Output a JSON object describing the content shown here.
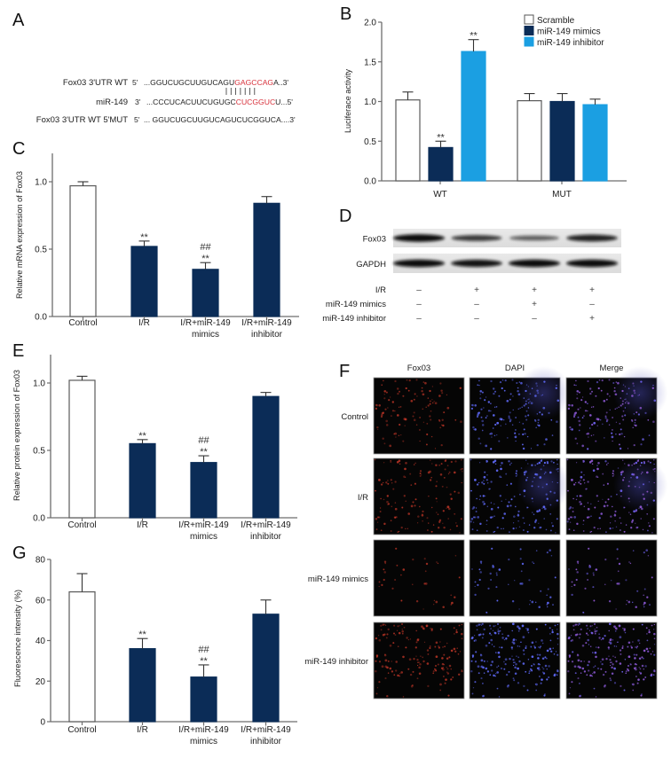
{
  "panel_labels": {
    "a": "A",
    "b": "B",
    "c": "C",
    "d": "D",
    "e": "E",
    "f": "F",
    "g": "G"
  },
  "panel_a": {
    "label": "A",
    "rows": [
      {
        "name": "Fox03 3'UTR WT",
        "end": "5'",
        "pre": "...GGUCUGCUUGUCAGU",
        "seed": "GAGCCAG",
        "post": "A..3'"
      },
      {
        "name": "miR-149",
        "end": "3'",
        "pre": "...CCCUCACUUCUGUGC",
        "seed": "CUCGGUC",
        "post": "U...5'"
      },
      {
        "name": "Fox03 3'UTR WT 5'MUT",
        "end": "5'",
        "pre": "... GGUCUGCUUGUCAGUCUCGGUCA....3'",
        "seed": "",
        "post": ""
      }
    ],
    "pair_count": 7,
    "seed_color": "#d8323c"
  },
  "panel_d": {
    "label": "D",
    "blots": [
      {
        "name": "Fox03",
        "intensity": [
          1.0,
          0.68,
          0.42,
          0.85
        ]
      },
      {
        "name": "GAPDH",
        "intensity": [
          1.0,
          0.95,
          1.0,
          1.0
        ]
      }
    ],
    "conditions": [
      {
        "name": "I/R",
        "signs": [
          "–",
          "+",
          "+",
          "+"
        ]
      },
      {
        "name": "miR-149 mimics",
        "signs": [
          "–",
          "–",
          "+",
          "–"
        ]
      },
      {
        "name": "miR-149 inhibitor",
        "signs": [
          "–",
          "–",
          "–",
          "+"
        ]
      }
    ]
  },
  "panel_f": {
    "label": "F",
    "columns": [
      "Fox03",
      "DAPI",
      "Merge"
    ],
    "rows": [
      "Control",
      "I/R",
      "miR-149 mimics",
      "miR-149 inhibitor"
    ]
  },
  "colors": {
    "scramble_control": "#ffffff",
    "mimics_treatment": "#0b2c57",
    "inhibitor": "#1b9fe2",
    "axis": "#6d6d6d",
    "seed_sequence": "#d8323c"
  },
  "chart_data": [
    {
      "panel": "B",
      "type": "bar",
      "title": "",
      "xlabel": "",
      "ylabel": "Luciferace activity",
      "ylim": [
        0,
        2.0
      ],
      "yticks": [
        0,
        0.5,
        1.0,
        1.5,
        2.0
      ],
      "ytick_labels": [
        "0.0",
        "0.5",
        "1.0",
        "1.5",
        "2.0"
      ],
      "categories": [
        "WT",
        "MUT"
      ],
      "series": [
        {
          "name": "Scramble",
          "color": "#ffffff",
          "values": [
            1.02,
            1.01
          ],
          "errors": [
            0.1,
            0.09
          ],
          "annotations": [
            [],
            []
          ]
        },
        {
          "name": "miR-149 mimics",
          "color": "#0b2c57",
          "values": [
            0.42,
            1.0
          ],
          "errors": [
            0.08,
            0.1
          ],
          "annotations": [
            [
              "**"
            ],
            []
          ]
        },
        {
          "name": "miR-149 inhibitor",
          "color": "#1b9fe2",
          "values": [
            1.63,
            0.96
          ],
          "errors": [
            0.15,
            0.07
          ],
          "annotations": [
            [
              "**"
            ],
            []
          ]
        }
      ],
      "legend_position": "top-right",
      "grid": false
    },
    {
      "panel": "C",
      "type": "bar",
      "title": "",
      "xlabel": "",
      "ylabel": "Relative mRNA expression of Fox03",
      "ylim": [
        0,
        1.2
      ],
      "yticks": [
        0,
        0.5,
        1.0
      ],
      "ytick_labels": [
        "0.0",
        "0.5",
        "1.0"
      ],
      "categories": [
        "Control",
        "I/R",
        "I/R+miR-149 mimics",
        "I/R+miR-149 inhibitor"
      ],
      "category_lines": [
        [
          "Control"
        ],
        [
          "I/R"
        ],
        [
          "I/R+miR-149",
          "mimics"
        ],
        [
          "I/R+miR-149",
          "inhibitor"
        ]
      ],
      "values": [
        0.97,
        0.52,
        0.35,
        0.84
      ],
      "errors": [
        0.03,
        0.04,
        0.05,
        0.05
      ],
      "colors": [
        "#ffffff",
        "#0b2c57",
        "#0b2c57",
        "#0b2c57"
      ],
      "annotations": [
        [],
        [
          "**"
        ],
        [
          "##",
          "**"
        ],
        []
      ],
      "grid": false
    },
    {
      "panel": "E",
      "type": "bar",
      "title": "",
      "xlabel": "",
      "ylabel": "Relative protein expression of Fox03",
      "ylim": [
        0,
        1.2
      ],
      "yticks": [
        0,
        0.5,
        1.0
      ],
      "ytick_labels": [
        "0.0",
        "0.5",
        "1.0"
      ],
      "categories": [
        "Control",
        "I/R",
        "I/R+miR-149 mimics",
        "I/R+miR-149 inhibitor"
      ],
      "category_lines": [
        [
          "Control"
        ],
        [
          "I/R"
        ],
        [
          "I/R+miR-149",
          "mimics"
        ],
        [
          "I/R+miR-149",
          "inhibitor"
        ]
      ],
      "values": [
        1.02,
        0.55,
        0.41,
        0.9
      ],
      "errors": [
        0.03,
        0.03,
        0.05,
        0.03
      ],
      "colors": [
        "#ffffff",
        "#0b2c57",
        "#0b2c57",
        "#0b2c57"
      ],
      "annotations": [
        [],
        [
          "**"
        ],
        [
          "##",
          "**"
        ],
        []
      ],
      "grid": false
    },
    {
      "panel": "G",
      "type": "bar",
      "title": "",
      "xlabel": "",
      "ylabel": "Fluorescence intensity (%)",
      "ylim": [
        0,
        80
      ],
      "yticks": [
        0,
        20,
        40,
        60,
        80
      ],
      "ytick_labels": [
        "0",
        "20",
        "40",
        "60",
        "80"
      ],
      "categories": [
        "Control",
        "I/R",
        "I/R+miR-149 mimics",
        "I/R+miR-149 inhibitor"
      ],
      "category_lines": [
        [
          "Control"
        ],
        [
          "I/R"
        ],
        [
          "I/R+miR-149",
          "mimics"
        ],
        [
          "I/R+miR-149",
          "inhibitor"
        ]
      ],
      "values": [
        64,
        36,
        22,
        53
      ],
      "errors": [
        9,
        5,
        6,
        7
      ],
      "colors": [
        "#ffffff",
        "#0b2c57",
        "#0b2c57",
        "#0b2c57"
      ],
      "annotations": [
        [],
        [
          "**"
        ],
        [
          "##",
          "**"
        ],
        []
      ],
      "grid": false
    }
  ]
}
